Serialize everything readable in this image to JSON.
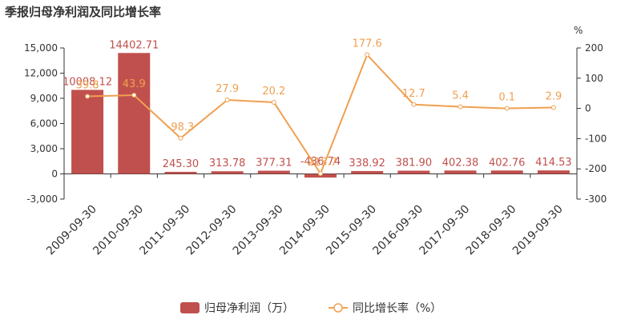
{
  "chart_data": {
    "type": "bar",
    "title": "季报归母净利润及同比增长率",
    "categories": [
      "2009-09-30",
      "2010-09-30",
      "2011-09-30",
      "2012-09-30",
      "2013-09-30",
      "2014-09-30",
      "2015-09-30",
      "2016-09-30",
      "2017-09-30",
      "2018-09-30",
      "2019-09-30"
    ],
    "series": [
      {
        "name": "归母净利润（万）",
        "type": "bar",
        "axis": "left",
        "color": "#c0504d",
        "values": [
          10008.12,
          14402.71,
          245.3,
          313.78,
          377.31,
          -436.74,
          338.92,
          381.9,
          402.38,
          402.76,
          414.53
        ],
        "labels": [
          "10008.12",
          "14402.71",
          "245.30",
          "313.78",
          "377.31",
          "-436.74",
          "338.92",
          "381.90",
          "402.38",
          "402.76",
          "414.53"
        ]
      },
      {
        "name": "同比增长率（%）",
        "type": "line",
        "axis": "right",
        "color": "#f0a050",
        "values": [
          39.8,
          43.9,
          -98.3,
          27.9,
          20.2,
          -215.7,
          177.6,
          12.7,
          5.4,
          0.1,
          2.9
        ],
        "labels": [
          "39.8",
          "43.9",
          "-98.3",
          "27.9",
          "20.2",
          "-215.7",
          "177.6",
          "12.7",
          "5.4",
          "0.1",
          "2.9"
        ]
      }
    ],
    "y_left": {
      "ylim": [
        -3000,
        15000
      ],
      "ticks": [
        -3000,
        0,
        3000,
        6000,
        9000,
        12000,
        15000
      ],
      "tick_labels": [
        "-3,000",
        "0",
        "3,000",
        "6,000",
        "9,000",
        "12,000",
        "15,000"
      ]
    },
    "y_right": {
      "label": "%",
      "ylim": [
        -300,
        200
      ],
      "ticks": [
        -300,
        -200,
        -100,
        0,
        100,
        200
      ],
      "tick_labels": [
        "-300",
        "-200",
        "-100",
        "0",
        "100",
        "200"
      ]
    },
    "grid": false,
    "legend": "bottom-center"
  }
}
